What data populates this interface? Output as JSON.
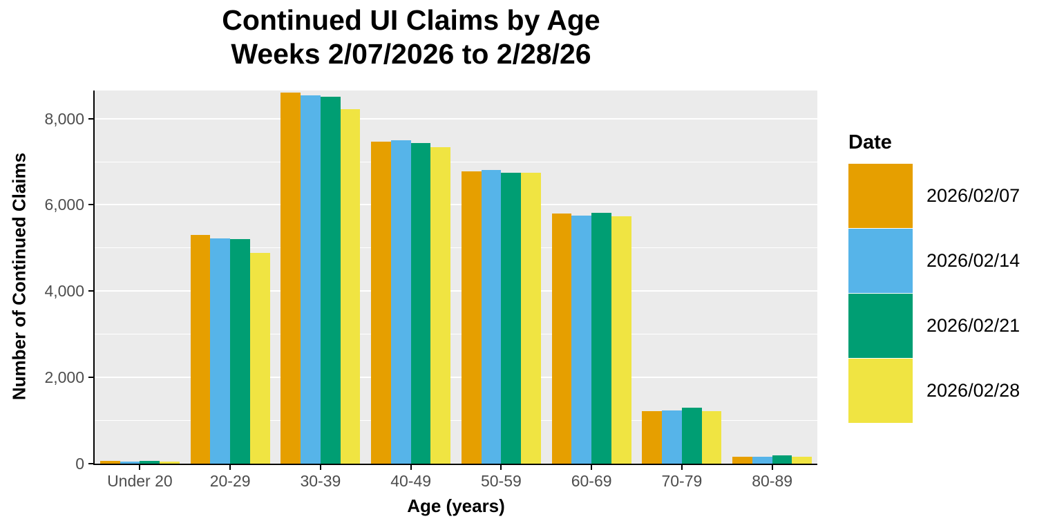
{
  "title": {
    "line1": "Continued UI Claims by Age",
    "line2": "Weeks 2/07/2026 to 2/28/26"
  },
  "chart_data": {
    "type": "bar",
    "grouped": true,
    "title": "Continued UI Claims by Age — Weeks 2/07/2026 to 2/28/26",
    "xlabel": "Age (years)",
    "ylabel": "Number of Continued Claims",
    "legend_title": "Date",
    "legend_position": "right",
    "categories": [
      "Under 20",
      "20-29",
      "30-39",
      "40-49",
      "50-59",
      "60-69",
      "70-79",
      "80-89"
    ],
    "series": [
      {
        "name": "2026/02/07",
        "color": "#E69F00",
        "values": [
          65,
          5300,
          8610,
          7470,
          6780,
          5800,
          1225,
          155
        ]
      },
      {
        "name": "2026/02/14",
        "color": "#56B4E9",
        "values": [
          55,
          5230,
          8540,
          7500,
          6805,
          5755,
          1230,
          160
        ]
      },
      {
        "name": "2026/02/21",
        "color": "#009E73",
        "values": [
          70,
          5210,
          8500,
          7440,
          6740,
          5810,
          1290,
          185
        ]
      },
      {
        "name": "2026/02/28",
        "color": "#F0E442",
        "values": [
          55,
          4890,
          8220,
          7340,
          6745,
          5740,
          1225,
          155
        ]
      }
    ],
    "ylim": [
      0,
      8650
    ],
    "yticks_major": [
      0,
      2000,
      4000,
      6000,
      8000
    ],
    "ytick_labels": [
      "0",
      "2,000",
      "4,000",
      "6,000",
      "8,000"
    ],
    "yticks_minor": [
      1000,
      3000,
      5000,
      7000
    ],
    "grid": true,
    "panel_bg": "#EBEBEB",
    "grid_color": "#FFFFFF",
    "axis_text_color": "#4D4D4D"
  }
}
